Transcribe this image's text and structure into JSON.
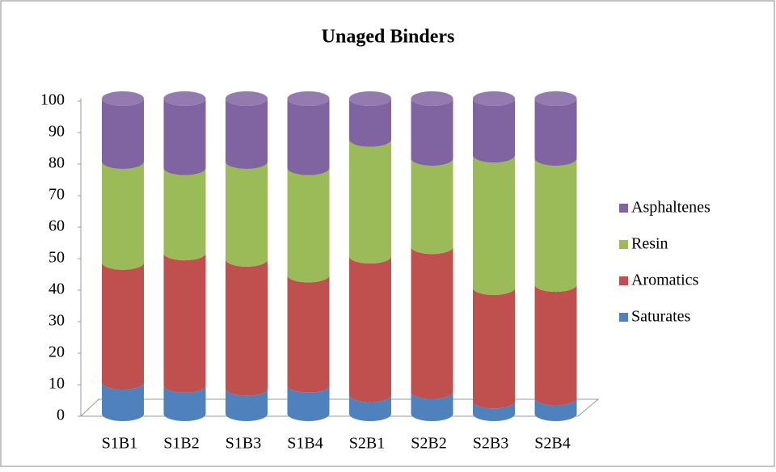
{
  "chart_data": {
    "type": "stacked-cylinder",
    "title": "Unaged Binders",
    "categories": [
      "S1B1",
      "S1B2",
      "S1B3",
      "S1B4",
      "S2B1",
      "S2B2",
      "S2B3",
      "S2B4"
    ],
    "series": [
      {
        "name": "Saturates",
        "color": "#4f81bd",
        "values": [
          10,
          9,
          8,
          9,
          6,
          7,
          4,
          5
        ]
      },
      {
        "name": "Aromatics",
        "color": "#c0504d",
        "values": [
          38,
          42,
          41,
          35,
          44,
          46,
          36,
          36
        ]
      },
      {
        "name": "Resin",
        "color": "#9bbb59",
        "values": [
          32,
          27,
          31,
          34,
          37,
          28,
          42,
          40
        ]
      },
      {
        "name": "Asphaltenes",
        "color": "#8064a2",
        "values": [
          20,
          22,
          20,
          22,
          13,
          19,
          18,
          19
        ]
      }
    ],
    "ylim": [
      0,
      100
    ],
    "yticks": [
      0,
      10,
      20,
      30,
      40,
      50,
      60,
      70,
      80,
      90,
      100
    ],
    "legend": "right"
  }
}
